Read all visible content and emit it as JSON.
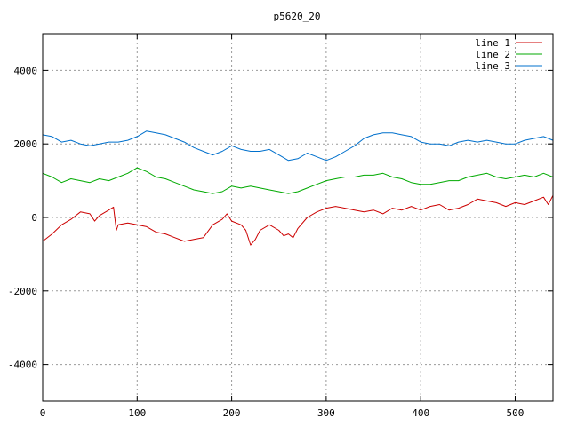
{
  "chart_data": {
    "type": "line",
    "title": "p5620_20",
    "xlabel": "",
    "ylabel": "",
    "xlim": [
      0,
      540
    ],
    "ylim": [
      -5000,
      5000
    ],
    "x_ticks": [
      0,
      100,
      200,
      300,
      400,
      500
    ],
    "y_ticks": [
      -4000,
      -2000,
      0,
      2000,
      4000
    ],
    "grid": true,
    "legend_position": "top-right",
    "series": [
      {
        "name": "line 1",
        "color": "#cc0000",
        "x": [
          0,
          10,
          20,
          30,
          40,
          50,
          55,
          60,
          70,
          75,
          78,
          80,
          90,
          100,
          110,
          120,
          130,
          140,
          150,
          160,
          170,
          180,
          190,
          195,
          200,
          210,
          215,
          220,
          225,
          230,
          240,
          250,
          255,
          260,
          265,
          270,
          280,
          290,
          300,
          310,
          320,
          330,
          340,
          350,
          360,
          370,
          380,
          390,
          400,
          410,
          420,
          430,
          440,
          450,
          460,
          470,
          480,
          490,
          500,
          510,
          520,
          530,
          535,
          540
        ],
        "y": [
          -650,
          -450,
          -200,
          -50,
          150,
          100,
          -100,
          50,
          200,
          280,
          -350,
          -200,
          -150,
          -200,
          -250,
          -400,
          -450,
          -550,
          -650,
          -600,
          -550,
          -200,
          -50,
          100,
          -100,
          -200,
          -350,
          -750,
          -600,
          -350,
          -200,
          -350,
          -500,
          -450,
          -550,
          -300,
          0,
          150,
          250,
          300,
          250,
          200,
          150,
          200,
          100,
          250,
          200,
          300,
          200,
          300,
          350,
          200,
          250,
          350,
          500,
          450,
          400,
          300,
          400,
          350,
          450,
          550,
          350,
          600
        ]
      },
      {
        "name": "line 2",
        "color": "#00aa00",
        "x": [
          0,
          10,
          20,
          30,
          40,
          50,
          60,
          70,
          80,
          90,
          100,
          110,
          120,
          130,
          140,
          150,
          160,
          170,
          180,
          190,
          200,
          210,
          220,
          230,
          240,
          250,
          260,
          270,
          280,
          290,
          300,
          310,
          320,
          330,
          340,
          350,
          360,
          370,
          380,
          390,
          400,
          410,
          420,
          430,
          440,
          450,
          460,
          470,
          480,
          490,
          500,
          510,
          520,
          530,
          540
        ],
        "y": [
          1200,
          1100,
          950,
          1050,
          1000,
          950,
          1050,
          1000,
          1100,
          1200,
          1350,
          1250,
          1100,
          1050,
          950,
          850,
          750,
          700,
          650,
          700,
          850,
          800,
          850,
          800,
          750,
          700,
          650,
          700,
          800,
          900,
          1000,
          1050,
          1100,
          1100,
          1150,
          1150,
          1200,
          1100,
          1050,
          950,
          900,
          900,
          950,
          1000,
          1000,
          1100,
          1150,
          1200,
          1100,
          1050,
          1100,
          1150,
          1100,
          1200,
          1100
        ]
      },
      {
        "name": "line 3",
        "color": "#0070cc",
        "x": [
          0,
          10,
          20,
          30,
          40,
          50,
          60,
          70,
          80,
          90,
          100,
          110,
          120,
          130,
          140,
          150,
          160,
          170,
          180,
          190,
          200,
          210,
          220,
          230,
          240,
          250,
          260,
          270,
          280,
          290,
          300,
          310,
          320,
          330,
          340,
          350,
          360,
          370,
          380,
          390,
          400,
          410,
          420,
          430,
          440,
          450,
          460,
          470,
          480,
          490,
          500,
          510,
          520,
          530,
          540
        ],
        "y": [
          2250,
          2200,
          2050,
          2100,
          2000,
          1950,
          2000,
          2050,
          2050,
          2100,
          2200,
          2350,
          2300,
          2250,
          2150,
          2050,
          1900,
          1800,
          1700,
          1800,
          1950,
          1850,
          1800,
          1800,
          1850,
          1700,
          1550,
          1600,
          1750,
          1650,
          1550,
          1650,
          1800,
          1950,
          2150,
          2250,
          2300,
          2300,
          2250,
          2200,
          2050,
          2000,
          2000,
          1950,
          2050,
          2100,
          2050,
          2100,
          2050,
          2000,
          2000,
          2100,
          2150,
          2200,
          2100
        ]
      }
    ]
  }
}
